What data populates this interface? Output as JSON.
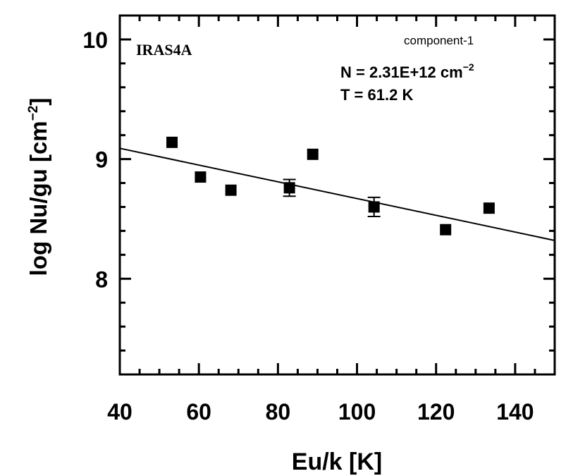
{
  "chart_data": {
    "type": "scatter",
    "source_label": "IRAS4A",
    "component_label": "component-1",
    "fit_N_prefix": "N = 2.31E+12 cm",
    "fit_N_exponent": "−2",
    "fit_T": "T = 61.2 K",
    "xlabel": "Eu/k [K]",
    "ylabel_main": "log Nu/gu [cm",
    "ylabel_exponent": "−2",
    "ylabel_close": "]",
    "xlim": [
      40,
      150
    ],
    "ylim": [
      7.2,
      10.2
    ],
    "x_ticks": [
      40,
      60,
      80,
      100,
      120,
      140
    ],
    "y_ticks": [
      8,
      9,
      10
    ],
    "points": [
      {
        "x": 53.2,
        "y": 9.14
      },
      {
        "x": 60.4,
        "y": 8.85
      },
      {
        "x": 68.1,
        "y": 8.74
      },
      {
        "x": 82.9,
        "y": 8.76,
        "err": 0.07
      },
      {
        "x": 88.8,
        "y": 9.04
      },
      {
        "x": 104.3,
        "y": 8.6,
        "err": 0.08
      },
      {
        "x": 122.4,
        "y": 8.41
      },
      {
        "x": 133.4,
        "y": 8.59
      }
    ],
    "fit_line": [
      {
        "x": 40,
        "y": 9.09
      },
      {
        "x": 150,
        "y": 8.32
      }
    ]
  }
}
